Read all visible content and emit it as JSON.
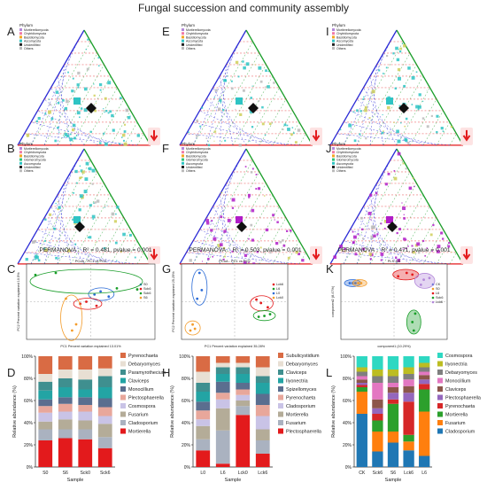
{
  "figure": {
    "title": "Fungal succession and community assembly",
    "panel_letters": [
      "A",
      "B",
      "C",
      "D",
      "E",
      "F",
      "G",
      "H",
      "I",
      "J",
      "K",
      "L"
    ],
    "permanova": [
      "PERMANOVA :  R² = 0.481, pvalue = 0.001",
      "PERMANOVA :  R² = 0.503, pvalue = 0.001",
      "PERMANOVA :  R² = 0.471, pvalue = 0.001"
    ],
    "colors": {
      "red": "#e31a1c",
      "blue": "#2b2bd6",
      "green": "#1a9e2a",
      "cyan": "#27c4c4",
      "purple": "#b01ec8",
      "pink": "#ff77b0",
      "orange": "#f39c2b"
    }
  },
  "ternary": [
    {
      "letter": "A",
      "legend_title": "Phylum",
      "legend": [
        {
          "label": "Mortierellomycota",
          "color": "#b388d9"
        },
        {
          "label": "Chytridiomycota",
          "color": "#f27ba6"
        },
        {
          "label": "Basidiomycota",
          "color": "#f5a623"
        },
        {
          "label": "Ascomycota",
          "color": "#2ec4c4"
        },
        {
          "label": "Unidentified",
          "color": "#222222"
        },
        {
          "label": "Others",
          "color": "#bbbbbb"
        }
      ]
    },
    {
      "letter": "B",
      "legend_title": "Phylum",
      "legend": [
        {
          "label": "Mortierellomycota",
          "color": "#b388d9"
        },
        {
          "label": "Chytridiomycota",
          "color": "#f27ba6"
        },
        {
          "label": "Basidiomycota",
          "color": "#f5a623"
        },
        {
          "label": "Glomeromycota",
          "color": "#2ec47a"
        },
        {
          "label": "Ascomycota",
          "color": "#2ec4c4"
        },
        {
          "label": "Unidentified",
          "color": "#222222"
        },
        {
          "label": "Others",
          "color": "#bbbbbb"
        }
      ]
    },
    {
      "letter": "E",
      "legend_title": "Phylum",
      "legend": [
        {
          "label": "Mortierellomycota",
          "color": "#b388d9"
        },
        {
          "label": "Chytridiomycota",
          "color": "#f27ba6"
        },
        {
          "label": "Basidiomycota",
          "color": "#f5a623"
        },
        {
          "label": "Ascomycota",
          "color": "#2ec4c4"
        },
        {
          "label": "Unidentified",
          "color": "#222222"
        },
        {
          "label": "Others",
          "color": "#bbbbbb"
        }
      ]
    },
    {
      "letter": "F",
      "legend_title": "Phylum",
      "legend": [
        {
          "label": "Mortierellomycota",
          "color": "#b388d9"
        },
        {
          "label": "Chytridiomycota",
          "color": "#f27ba6"
        },
        {
          "label": "Basidiomycota",
          "color": "#f5a623"
        },
        {
          "label": "Glomeromycota",
          "color": "#2ec47a"
        },
        {
          "label": "Ascomycota",
          "color": "#2ec4c4"
        },
        {
          "label": "Unidentified",
          "color": "#222222"
        },
        {
          "label": "Others",
          "color": "#bbbbbb"
        }
      ]
    },
    {
      "letter": "I",
      "legend_title": "Phylum",
      "legend": [
        {
          "label": "Mortierellomycota",
          "color": "#b388d9"
        },
        {
          "label": "Chytridiomycota",
          "color": "#f27ba6"
        },
        {
          "label": "Basidiomycota",
          "color": "#f5a623"
        },
        {
          "label": "Ascomycota",
          "color": "#2ec4c4"
        },
        {
          "label": "Unidentified",
          "color": "#222222"
        },
        {
          "label": "Others",
          "color": "#bbbbbb"
        }
      ]
    },
    {
      "letter": "J",
      "legend_title": "Phylum",
      "legend": [
        {
          "label": "Mortierellomycota",
          "color": "#b388d9"
        },
        {
          "label": "Chytridiomycota",
          "color": "#f27ba6"
        },
        {
          "label": "Basidiomycota",
          "color": "#f5a623"
        },
        {
          "label": "Glomeromycota",
          "color": "#2ec47a"
        },
        {
          "label": "Ascomycota",
          "color": "#2ec4c4"
        },
        {
          "label": "Unidentified",
          "color": "#222222"
        },
        {
          "label": "Others",
          "color": "#bbbbbb"
        }
      ]
    }
  ],
  "ordination": [
    {
      "letter": "C",
      "title": "PCoA - PC1 vs PC2",
      "xlabel": "PC1 Percent variation explained 13.01%",
      "ylabel": "PC2 Percent variation explained 10.5%",
      "groups": [
        {
          "name": "S0",
          "color": "#2b6bd6",
          "points": [
            [
              0.62,
              0.02
            ],
            [
              0.66,
              -0.03
            ],
            [
              0.59,
              -0.01
            ]
          ]
        },
        {
          "name": "Sck6",
          "color": "#e31a1c",
          "points": [
            [
              0.55,
              -0.08
            ],
            [
              0.6,
              -0.12
            ],
            [
              0.52,
              -0.1
            ]
          ]
        },
        {
          "name": "Sck6",
          "color": "#1a9e2a",
          "points": [
            [
              0.7,
              0.05
            ],
            [
              0.8,
              0.04
            ],
            [
              0.4,
              0.2
            ],
            [
              0.3,
              0.18
            ]
          ]
        },
        {
          "name": "S6",
          "color": "#f39c2b",
          "points": [
            [
              0.45,
              -0.05
            ],
            [
              0.5,
              -0.3
            ],
            [
              0.48,
              -0.36
            ]
          ]
        }
      ]
    },
    {
      "letter": "G",
      "title": "PCoA - PC1 vs PC2",
      "xlabel": "PC1 Percent variation explained 35.28%",
      "ylabel": "PC2 Percent variation explained 25.25%",
      "groups": [
        {
          "name": "Lck6",
          "color": "#e31a1c",
          "points": [
            [
              0.82,
              0.0
            ],
            [
              0.88,
              -0.05
            ],
            [
              0.78,
              0.04
            ]
          ]
        },
        {
          "name": "L6",
          "color": "#1a9e2a",
          "points": [
            [
              0.85,
              -0.15
            ],
            [
              0.9,
              -0.13
            ],
            [
              0.8,
              -0.16
            ]
          ]
        },
        {
          "name": "L0",
          "color": "#2b6bd6",
          "points": [
            [
              0.28,
              0.35
            ],
            [
              0.3,
              0.15
            ],
            [
              0.26,
              0.05
            ]
          ]
        },
        {
          "name": "Lck0",
          "color": "#f39c2b",
          "points": [
            [
              0.22,
              -0.25
            ],
            [
              0.24,
              -0.3
            ],
            [
              0.2,
              -0.32
            ]
          ]
        }
      ]
    },
    {
      "letter": "K",
      "title": "PLS-DA",
      "xlabel": "component1 (10.29%)",
      "ylabel": "component2 (8.47%)",
      "groups": [
        {
          "name": "CK",
          "color": "#2b6bd6",
          "points": [
            [
              -20,
              3
            ],
            [
              -19,
              3
            ],
            [
              -18,
              3
            ]
          ]
        },
        {
          "name": "S0",
          "color": "#f39c2b",
          "points": [
            [
              -17,
              3
            ],
            [
              -16,
              3
            ]
          ]
        },
        {
          "name": "L6",
          "color": "#e31a1c",
          "points": [
            [
              -3,
              7
            ],
            [
              0,
              9
            ],
            [
              2,
              8
            ]
          ]
        },
        {
          "name": "Sck6",
          "color": "#1a9e2a",
          "points": [
            [
              2,
              -20
            ],
            [
              3,
              -15
            ],
            [
              2.5,
              -25
            ]
          ]
        },
        {
          "name": "Lck6",
          "color": "#b388d9",
          "points": [
            [
              6,
              5
            ],
            [
              8,
              6
            ],
            [
              5,
              2
            ]
          ]
        }
      ]
    }
  ],
  "stacked_bars": [
    {
      "letter": "D",
      "ylabel": "Relative abundance (%)",
      "xlabel": "Sample",
      "categories": [
        "S0",
        "S6",
        "Sck0",
        "Sck6"
      ],
      "series": [
        {
          "name": "Mortierella",
          "color": "#e31a1c",
          "values": [
            24,
            26,
            25,
            17
          ]
        },
        {
          "name": "Cladosporium",
          "color": "#aab2c0",
          "values": [
            10,
            8,
            9,
            10
          ]
        },
        {
          "name": "Fusarium",
          "color": "#b4ac98",
          "values": [
            7,
            9,
            8,
            12
          ]
        },
        {
          "name": "Cosmospora",
          "color": "#c9c3e6",
          "values": [
            8,
            7,
            8,
            7
          ]
        },
        {
          "name": "Plectosphaerella",
          "color": "#e8a79b",
          "values": [
            6,
            7,
            6,
            8
          ]
        },
        {
          "name": "Monocillium",
          "color": "#5b6e8f",
          "values": [
            6,
            6,
            7,
            8
          ]
        },
        {
          "name": "Claviceps",
          "color": "#23a4a4",
          "values": [
            8,
            9,
            7,
            10
          ]
        },
        {
          "name": "Paramyrothecium",
          "color": "#3f8f8f",
          "values": [
            8,
            8,
            9,
            10
          ]
        },
        {
          "name": "Debaryomyces",
          "color": "#e8dfd3",
          "values": [
            7,
            8,
            9,
            7
          ]
        },
        {
          "name": "Pyrenochaeta",
          "color": "#d96b44",
          "values": [
            16,
            12,
            12,
            11
          ]
        }
      ]
    },
    {
      "letter": "H",
      "ylabel": "Relative abundance (%)",
      "xlabel": "Sample",
      "categories": [
        "L0",
        "L6",
        "Lck0",
        "Lck6"
      ],
      "series": [
        {
          "name": "Plectosphaerella",
          "color": "#e31a1c",
          "values": [
            15,
            3,
            47,
            12
          ]
        },
        {
          "name": "Fusarium",
          "color": "#aab2c0",
          "values": [
            10,
            30,
            8,
            12
          ]
        },
        {
          "name": "Mortierella",
          "color": "#b4ac98",
          "values": [
            12,
            20,
            5,
            10
          ]
        },
        {
          "name": "Cladosporium",
          "color": "#c9c3e6",
          "values": [
            6,
            8,
            5,
            12
          ]
        },
        {
          "name": "Pyrenochaeta",
          "color": "#e8a79b",
          "values": [
            8,
            6,
            5,
            10
          ]
        },
        {
          "name": "Spizellomyces",
          "color": "#5b6e8f",
          "values": [
            8,
            10,
            6,
            10
          ]
        },
        {
          "name": "Ilyonectria",
          "color": "#23a4a4",
          "values": [
            9,
            7,
            8,
            10
          ]
        },
        {
          "name": "Claviceps",
          "color": "#3f8f8f",
          "values": [
            8,
            6,
            6,
            6
          ]
        },
        {
          "name": "Debaryomyces",
          "color": "#e8dfd3",
          "values": [
            10,
            4,
            4,
            8
          ]
        },
        {
          "name": "Subulicystidium",
          "color": "#d96b44",
          "values": [
            14,
            6,
            6,
            10
          ]
        }
      ]
    },
    {
      "letter": "L",
      "ylabel": "Relative abundance (%)",
      "xlabel": "Sample",
      "categories": [
        "CK",
        "Sck6",
        "S6",
        "Lck6",
        "L6"
      ],
      "series": [
        {
          "name": "Cladosporium",
          "color": "#1f77b4",
          "values": [
            48,
            14,
            22,
            15,
            10
          ]
        },
        {
          "name": "Fusarium",
          "color": "#ff7f0e",
          "values": [
            20,
            18,
            10,
            8,
            40
          ]
        },
        {
          "name": "Mortierella",
          "color": "#2ca02c",
          "values": [
            4,
            10,
            25,
            6,
            20
          ]
        },
        {
          "name": "Pyrenochaeta",
          "color": "#d62728",
          "values": [
            2,
            6,
            4,
            30,
            5
          ]
        },
        {
          "name": "Plectosphaerella",
          "color": "#9467bd",
          "values": [
            2,
            5,
            6,
            8,
            4
          ]
        },
        {
          "name": "Claviceps",
          "color": "#8c564b",
          "values": [
            3,
            8,
            5,
            6,
            4
          ]
        },
        {
          "name": "Monocillium",
          "color": "#e377c2",
          "values": [
            3,
            15,
            4,
            6,
            3
          ]
        },
        {
          "name": "Debaryomyces",
          "color": "#7f7f7f",
          "values": [
            4,
            6,
            6,
            5,
            4
          ]
        },
        {
          "name": "Ilyonectria",
          "color": "#bcbd22",
          "values": [
            4,
            6,
            6,
            6,
            4
          ]
        },
        {
          "name": "Cosmospora",
          "color": "#2ed8c2",
          "values": [
            10,
            12,
            12,
            10,
            6
          ]
        }
      ]
    }
  ],
  "chart_data": [
    {
      "type": "bar",
      "panel": "D",
      "stacked": true,
      "categories": [
        "S0",
        "S6",
        "Sck0",
        "Sck6"
      ],
      "ylim": [
        0,
        100
      ],
      "ylabel": "Relative abundance (%)",
      "xlabel": "Sample"
    },
    {
      "type": "bar",
      "panel": "H",
      "stacked": true,
      "categories": [
        "L0",
        "L6",
        "Lck0",
        "Lck6"
      ],
      "ylim": [
        0,
        100
      ],
      "ylabel": "Relative abundance (%)",
      "xlabel": "Sample"
    },
    {
      "type": "bar",
      "panel": "L",
      "stacked": true,
      "categories": [
        "CK",
        "Sck6",
        "S6",
        "Lck6",
        "L6"
      ],
      "ylim": [
        0,
        100
      ],
      "ylabel": "Relative abundance (%)",
      "xlabel": "Sample"
    },
    {
      "type": "scatter",
      "panel": "C",
      "title": "PCoA - PC1 vs PC2"
    },
    {
      "type": "scatter",
      "panel": "G",
      "title": "PCoA - PC1 vs PC2"
    },
    {
      "type": "scatter",
      "panel": "K",
      "title": "PLS-DA"
    }
  ]
}
